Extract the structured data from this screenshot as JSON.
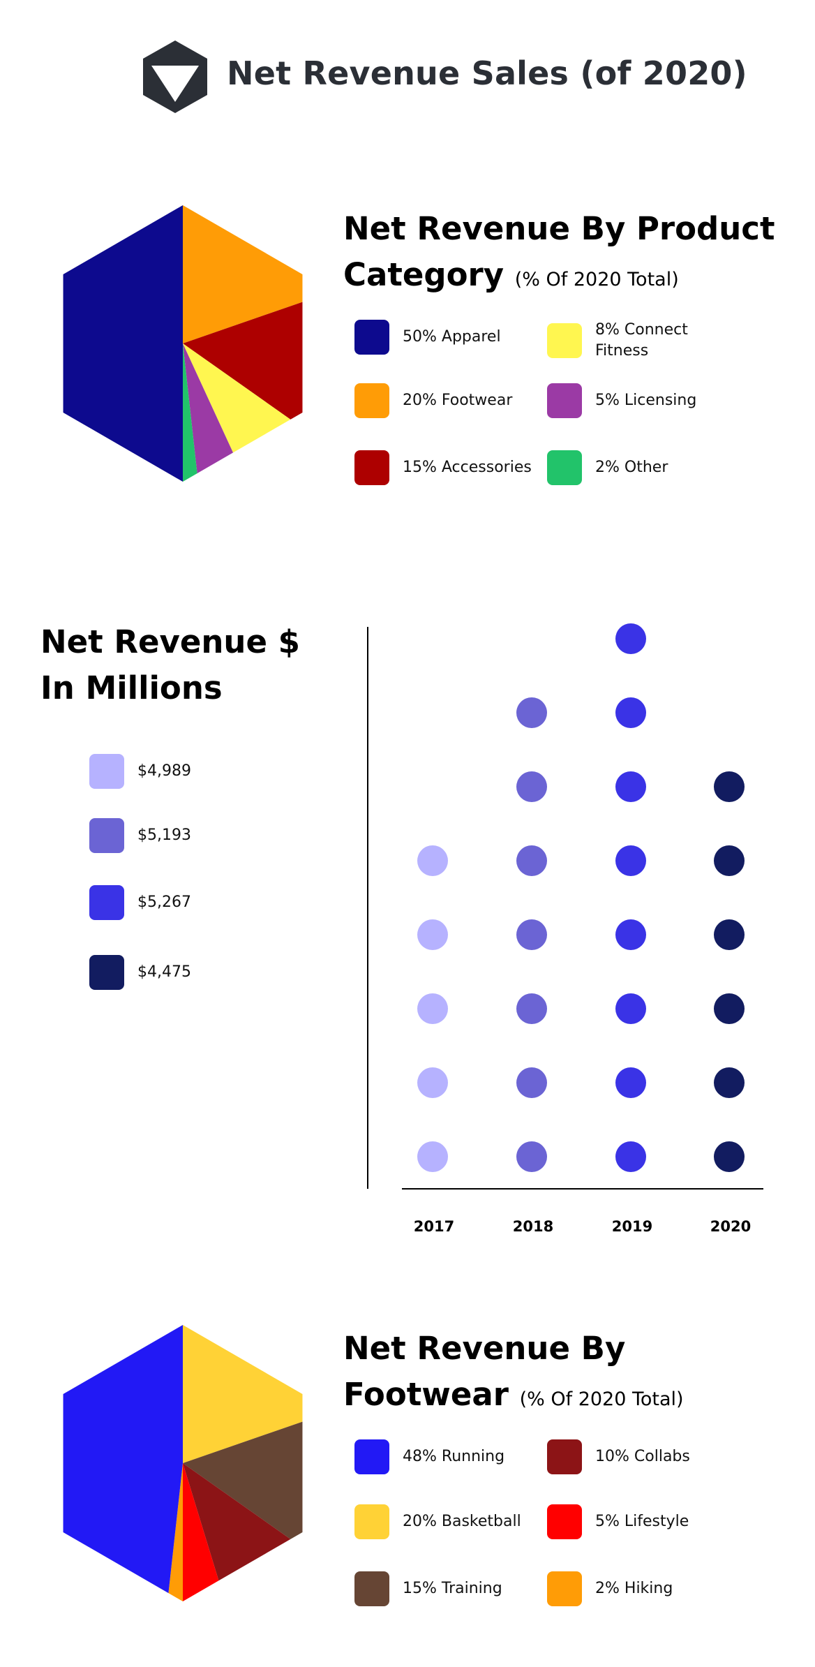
{
  "header": {
    "title": "Net Revenue Sales (of 2020)",
    "logo_icon": "hexagon-triangle-logo-icon",
    "logo_color": "#2b2f36"
  },
  "chart_data": [
    {
      "type": "pie",
      "shape": "hexagon",
      "title_main": "Net Revenue By Product Category",
      "title_sub": "(% Of 2020 Total)",
      "legend_layout": "right of chart, two columns",
      "slices": [
        {
          "label": "50% Apparel",
          "value": 50,
          "color": "#0d0a8e"
        },
        {
          "label": "20% Footwear",
          "value": 20,
          "color": "#ff9c06"
        },
        {
          "label": "15% Accessories",
          "value": 15,
          "color": "#ad0000"
        },
        {
          "label": "8% Connect Fitness",
          "value": 8,
          "color": "#fff650"
        },
        {
          "label": "5% Licensing",
          "value": 5,
          "color": "#9b3aa5"
        },
        {
          "label": "2% Other",
          "value": 2,
          "color": "#22c36a"
        }
      ]
    },
    {
      "type": "scatter",
      "subtype": "dot-column",
      "title": "Net Revenue $ In Millions",
      "x": [
        "2017",
        "2018",
        "2019",
        "2020"
      ],
      "series": [
        {
          "x": "2017",
          "label": "$4,989",
          "value": 4989,
          "dots": 5,
          "color": "#b6b2ff"
        },
        {
          "x": "2018",
          "label": "$5,193",
          "value": 5193,
          "dots": 7,
          "color": "#6b64d4"
        },
        {
          "x": "2019",
          "label": "$5,267",
          "value": 5267,
          "dots": 8,
          "color": "#3a33e6"
        },
        {
          "x": "2020",
          "label": "$4,475",
          "value": 4475,
          "dots": 6,
          "color": "#121c60"
        }
      ],
      "axis_color": "#000000",
      "grid": false
    },
    {
      "type": "pie",
      "shape": "hexagon",
      "title_main": "Net Revenue By Footwear",
      "title_sub": "(% Of 2020 Total)",
      "legend_layout": "right of chart, two columns",
      "slices": [
        {
          "label": "48% Running",
          "value": 48,
          "color": "#2219f5"
        },
        {
          "label": "20% Basketball",
          "value": 20,
          "color": "#ffd236"
        },
        {
          "label": "15% Training",
          "value": 15,
          "color": "#664534"
        },
        {
          "label": "10% Collabs",
          "value": 10,
          "color": "#8c1416"
        },
        {
          "label": "5% Lifestyle",
          "value": 5,
          "color": "#ff0000"
        },
        {
          "label": "2% Hiking",
          "value": 2,
          "color": "#ff9c06"
        }
      ]
    }
  ]
}
